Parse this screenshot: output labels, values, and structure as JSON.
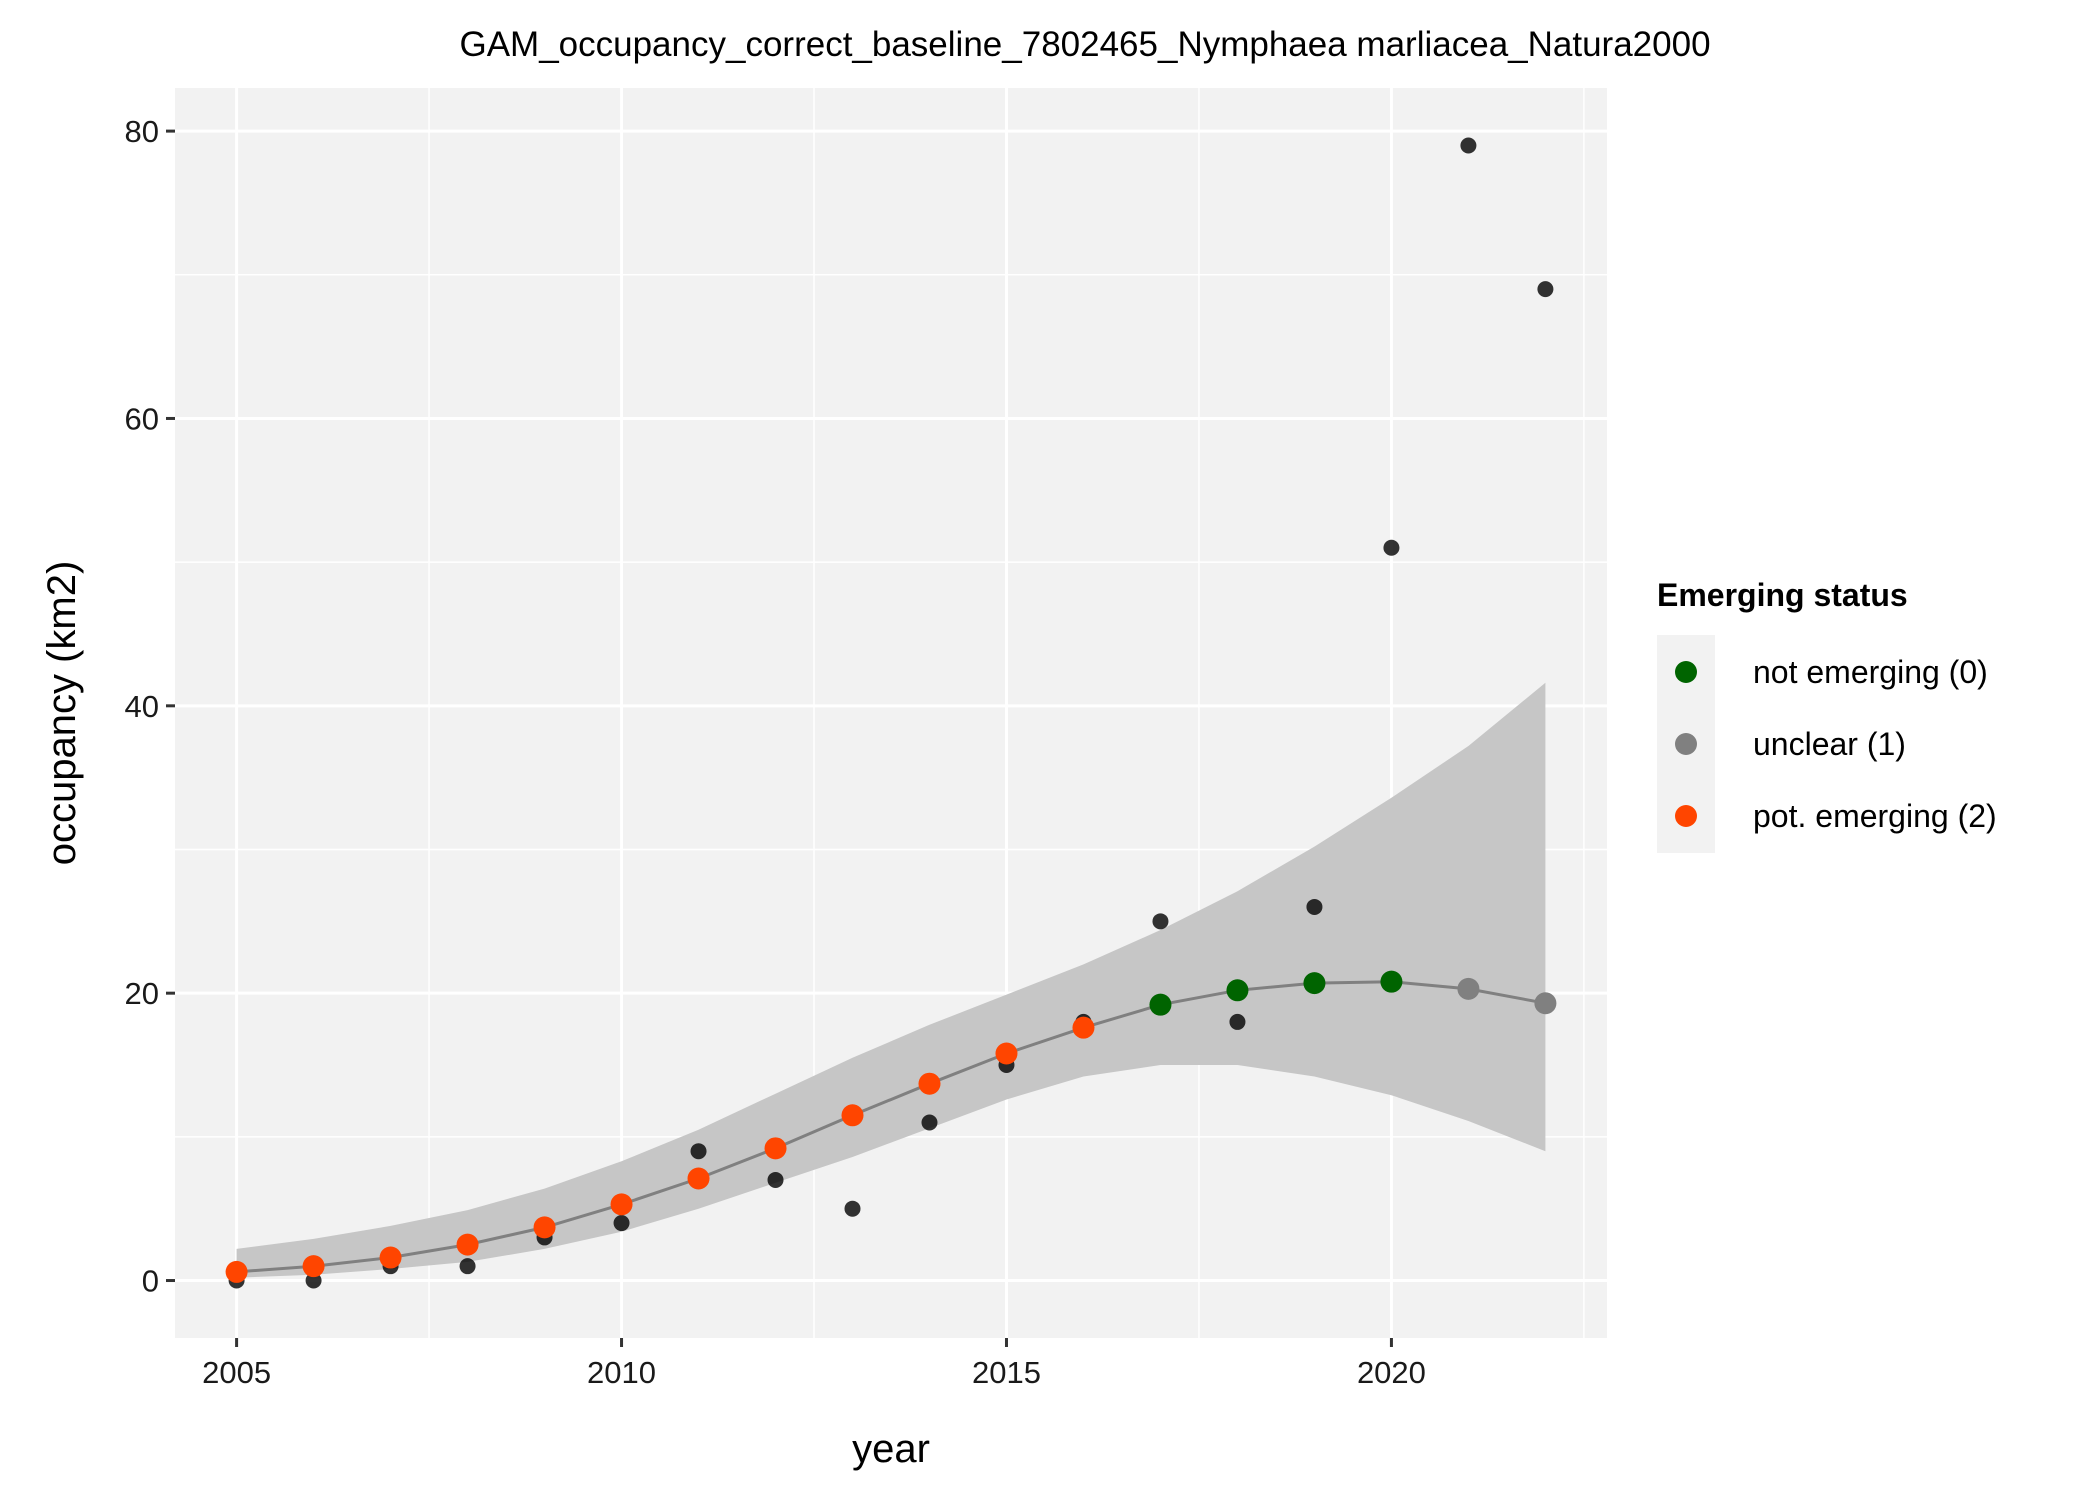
{
  "chart_data": {
    "type": "scatter",
    "title": "GAM_occupancy_correct_baseline_7802465_Nymphaea marliacea_Natura2000",
    "xlabel": "year",
    "ylabel": "occupancy (km2)",
    "xlim": [
      2004.2,
      2022.8
    ],
    "ylim": [
      -4,
      83
    ],
    "x_ticks": [
      2005,
      2010,
      2015,
      2020
    ],
    "y_ticks": [
      0,
      20,
      40,
      60,
      80
    ],
    "grid": true,
    "legend": {
      "title": "Emerging status",
      "position": "right",
      "entries": [
        {
          "label": "not emerging (0)",
          "color": "#006400"
        },
        {
          "label": "unclear (1)",
          "color": "#808080"
        },
        {
          "label": "pot. emerging (2)",
          "color": "#ff4500"
        }
      ]
    },
    "observed": {
      "color": "#000000",
      "x": [
        2005,
        2006,
        2007,
        2008,
        2009,
        2010,
        2011,
        2012,
        2013,
        2014,
        2015,
        2016,
        2017,
        2018,
        2019,
        2020,
        2021,
        2022
      ],
      "y": [
        0,
        0,
        1,
        1,
        3,
        4,
        9,
        7,
        5,
        11,
        15,
        18,
        25,
        18,
        26,
        51,
        79,
        69
      ]
    },
    "gam_fit": {
      "line_color": "#808080",
      "ribbon_color": "#c6c6c6",
      "x": [
        2005,
        2006,
        2007,
        2008,
        2009,
        2010,
        2011,
        2012,
        2013,
        2014,
        2015,
        2016,
        2017,
        2018,
        2019,
        2020,
        2021,
        2022
      ],
      "y": [
        0.6,
        1.0,
        1.6,
        2.5,
        3.7,
        5.3,
        7.1,
        9.2,
        11.5,
        13.7,
        15.8,
        17.6,
        19.2,
        20.2,
        20.7,
        20.8,
        20.3,
        19.3
      ],
      "lower": [
        0.2,
        0.4,
        0.8,
        1.3,
        2.2,
        3.4,
        5.0,
        6.8,
        8.6,
        10.6,
        12.6,
        14.2,
        15.0,
        15.0,
        14.2,
        12.9,
        11.1,
        9.0
      ],
      "upper": [
        2.2,
        2.9,
        3.8,
        4.9,
        6.4,
        8.3,
        10.5,
        13.0,
        15.5,
        17.8,
        19.9,
        22.0,
        24.4,
        27.1,
        30.2,
        33.6,
        37.2,
        41.6
      ],
      "status": [
        2,
        2,
        2,
        2,
        2,
        2,
        2,
        2,
        2,
        2,
        2,
        2,
        0,
        0,
        0,
        0,
        1,
        1
      ]
    }
  }
}
